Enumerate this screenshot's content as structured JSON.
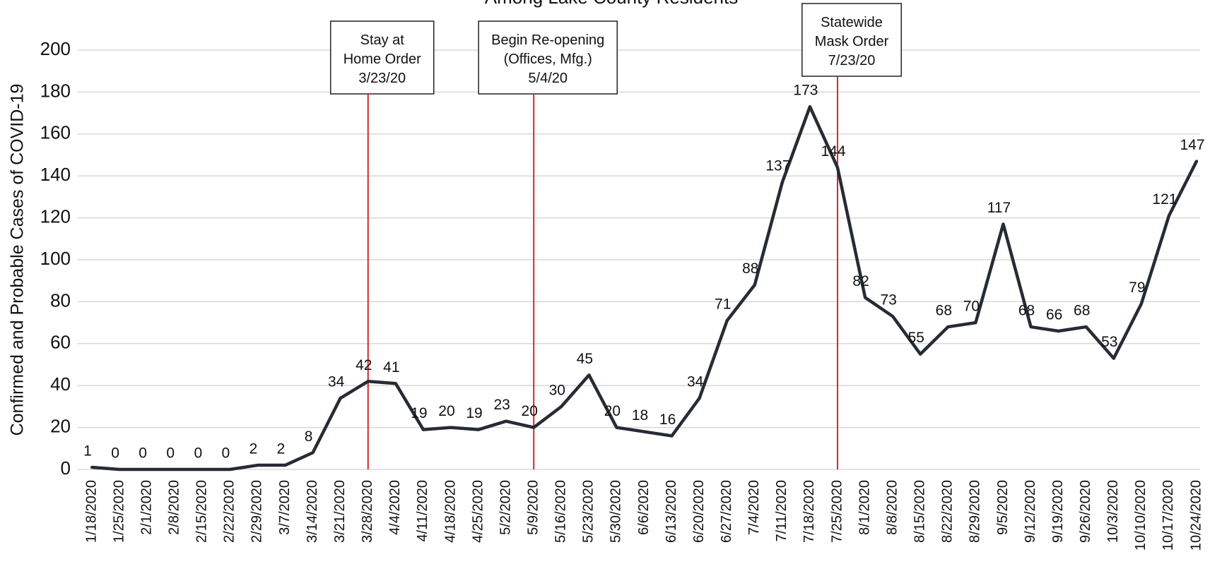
{
  "chart_data": {
    "type": "line",
    "title": "Among Lake County Residents",
    "y_label": "Confirmed and Probable Cases of COVID-19",
    "categories": [
      "1/18/2020",
      "1/25/2020",
      "2/1/2020",
      "2/8/2020",
      "2/15/2020",
      "2/22/2020",
      "2/29/2020",
      "3/7/2020",
      "3/14/2020",
      "3/21/2020",
      "3/28/2020",
      "4/4/2020",
      "4/11/2020",
      "4/18/2020",
      "4/25/2020",
      "5/2/2020",
      "5/9/2020",
      "5/16/2020",
      "5/23/2020",
      "5/30/2020",
      "6/6/2020",
      "6/13/2020",
      "6/20/2020",
      "6/27/2020",
      "7/4/2020",
      "7/11/2020",
      "7/18/2020",
      "7/25/2020",
      "8/1/2020",
      "8/8/2020",
      "8/15/2020",
      "8/22/2020",
      "8/29/2020",
      "9/5/2020",
      "9/12/2020",
      "9/19/2020",
      "9/26/2020",
      "10/3/2020",
      "10/10/2020",
      "10/17/2020",
      "10/24/2020"
    ],
    "values": [
      1,
      0,
      0,
      0,
      0,
      0,
      2,
      2,
      8,
      34,
      42,
      41,
      19,
      20,
      19,
      23,
      20,
      30,
      45,
      20,
      18,
      16,
      34,
      71,
      88,
      137,
      173,
      144,
      82,
      73,
      55,
      68,
      70,
      117,
      68,
      66,
      68,
      53,
      79,
      121,
      147
    ],
    "color": "#262b35",
    "ylim": [
      0,
      200
    ],
    "yticks": [
      0,
      20,
      40,
      60,
      80,
      100,
      120,
      140,
      160,
      180,
      200
    ],
    "grid": true,
    "annotations": [
      {
        "at": "3/28/2020",
        "lines": [
          "Stay at",
          "Home Order",
          "3/23/20"
        ],
        "color": "#d62728"
      },
      {
        "at": "5/9/2020",
        "lines": [
          "Begin Re-opening",
          "(Offices, Mfg.)",
          "5/4/20"
        ],
        "color": "#d62728"
      },
      {
        "at": "7/25/2020",
        "lines": [
          "Statewide",
          "Mask Order",
          "7/23/20"
        ],
        "color": "#d62728"
      }
    ]
  }
}
